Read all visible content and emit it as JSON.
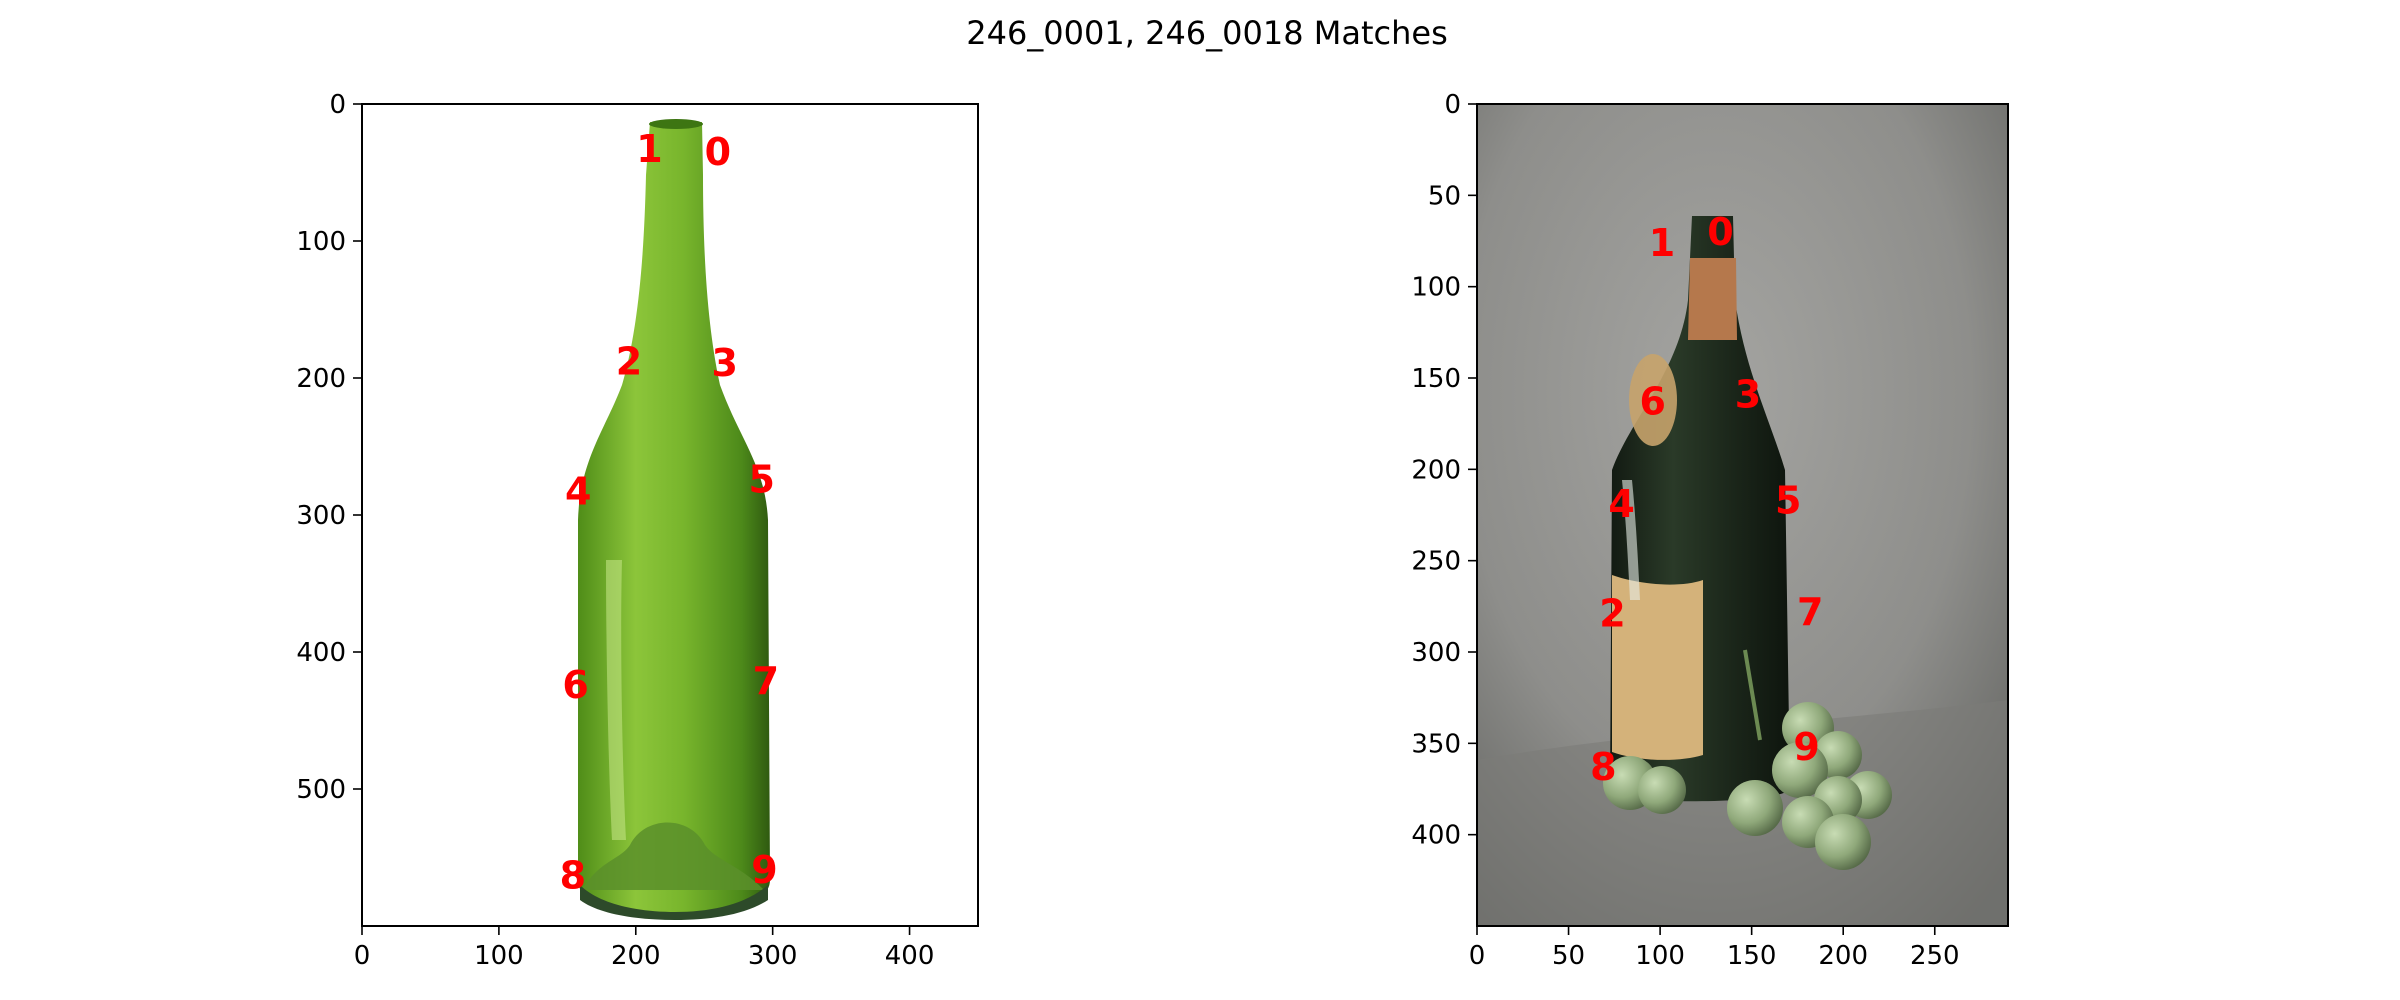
{
  "figure_title": "246_0001, 246_0018 Matches",
  "colors": {
    "keypoint": "#ff0000",
    "axes": "#000000",
    "left_bottle": "#6aa82a",
    "left_background": "#ffffff",
    "right_background": "#8d8d8b",
    "right_bottle": "#1d2a1c",
    "right_label": "#d4b27a",
    "right_foil": "#b5784c",
    "grapes": "#8fa87a"
  },
  "chart_data": [
    {
      "type": "scatter",
      "title": "",
      "image": "246_0001 (green glass bottle on white background)",
      "xlim": [
        0,
        450
      ],
      "ylim": [
        600,
        0
      ],
      "y_inverted": true,
      "xticks": [
        0,
        100,
        200,
        300,
        400
      ],
      "yticks": [
        0,
        100,
        200,
        300,
        400,
        500
      ],
      "points": [
        {
          "label": "0",
          "x": 260,
          "y": 35
        },
        {
          "label": "1",
          "x": 210,
          "y": 33
        },
        {
          "label": "2",
          "x": 195,
          "y": 188
        },
        {
          "label": "3",
          "x": 265,
          "y": 189
        },
        {
          "label": "4",
          "x": 158,
          "y": 283
        },
        {
          "label": "5",
          "x": 292,
          "y": 274
        },
        {
          "label": "6",
          "x": 156,
          "y": 424
        },
        {
          "label": "7",
          "x": 295,
          "y": 421
        },
        {
          "label": "8",
          "x": 154,
          "y": 563
        },
        {
          "label": "9",
          "x": 294,
          "y": 559
        }
      ]
    },
    {
      "type": "scatter",
      "title": "",
      "image": "246_0018 (dark wine bottle with grapes)",
      "xlim": [
        0,
        290
      ],
      "ylim": [
        450,
        0
      ],
      "y_inverted": true,
      "xticks": [
        0,
        50,
        100,
        150,
        200,
        250
      ],
      "yticks": [
        0,
        50,
        100,
        150,
        200,
        250,
        300,
        350,
        400
      ],
      "points": [
        {
          "label": "0",
          "x": 133,
          "y": 70
        },
        {
          "label": "1",
          "x": 101,
          "y": 76
        },
        {
          "label": "2",
          "x": 74,
          "y": 279
        },
        {
          "label": "3",
          "x": 148,
          "y": 159
        },
        {
          "label": "4",
          "x": 79,
          "y": 219
        },
        {
          "label": "5",
          "x": 170,
          "y": 217
        },
        {
          "label": "6",
          "x": 96,
          "y": 163
        },
        {
          "label": "7",
          "x": 182,
          "y": 278
        },
        {
          "label": "8",
          "x": 69,
          "y": 363
        },
        {
          "label": "9",
          "x": 180,
          "y": 352
        }
      ]
    }
  ]
}
